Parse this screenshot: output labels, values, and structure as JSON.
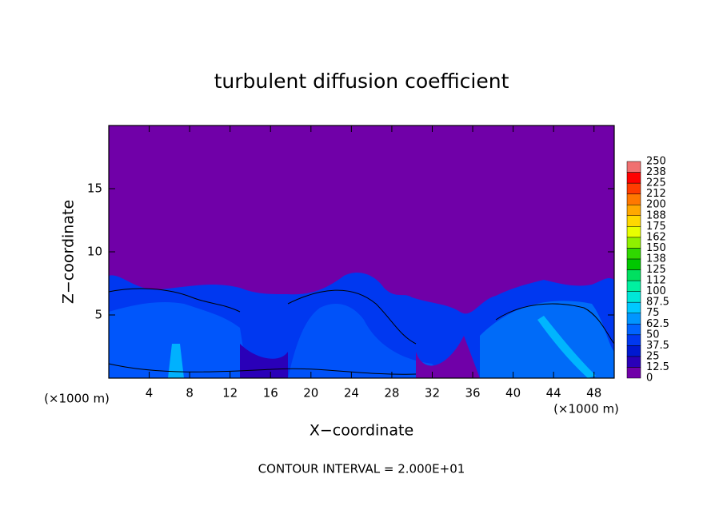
{
  "chart_data": {
    "type": "contour",
    "title": "turbulent diffusion coefficient",
    "xlabel": "X−coordinate",
    "ylabel": "Z−coordinate",
    "x_unit_label": "(×1000 m)",
    "annotation": "CONTOUR INTERVAL = 2.000E+01",
    "xlim": [
      0,
      50
    ],
    "xticks": [
      4,
      8,
      12,
      16,
      20,
      24,
      28,
      32,
      36,
      40,
      44,
      48
    ],
    "ylim": [
      0,
      20
    ],
    "yticks": [
      5,
      10,
      15
    ],
    "colorbar": {
      "levels": [
        0,
        12.5,
        25,
        37.5,
        50,
        62.5,
        75,
        87.5,
        100,
        {
          "value": 112.5,
          "label": "112"
        },
        125,
        {
          "value": 137.5,
          "label": "138"
        },
        150,
        {
          "value": 162.5,
          "label": "162"
        },
        175,
        {
          "value": 187.5,
          "label": "188"
        },
        200,
        {
          "value": 212.5,
          "label": "212"
        },
        225,
        {
          "value": 237.5,
          "label": "238"
        },
        250
      ],
      "colors": [
        "#7000a8",
        "#2a00b8",
        "#0018d0",
        "#0038f0",
        "#0064ff",
        "#0096ff",
        "#00c8ff",
        "#00e6d8",
        "#00f0a0",
        "#00e060",
        "#00c800",
        "#30d800",
        "#90f000",
        "#e8ff00",
        "#ffd800",
        "#ffa800",
        "#ff7800",
        "#ff3c00",
        "#ff0000",
        "#f07070"
      ]
    }
  }
}
